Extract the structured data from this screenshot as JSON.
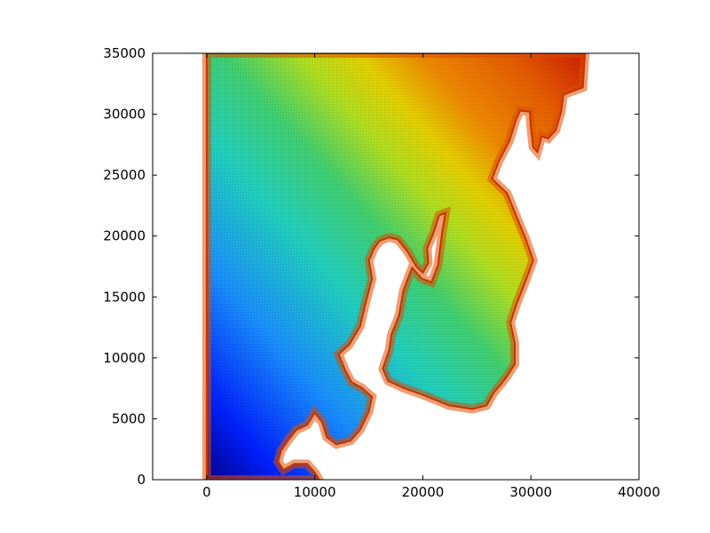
{
  "chart_data": {
    "type": "heatmap",
    "title": "",
    "xlabel": "",
    "ylabel": "",
    "xlim": [
      -5000,
      40000
    ],
    "ylim": [
      0,
      35000
    ],
    "x_ticks": [
      0,
      10000,
      20000,
      30000,
      40000
    ],
    "x_tick_labels": [
      "0",
      "10000",
      "20000",
      "30000",
      "40000"
    ],
    "y_ticks": [
      0,
      5000,
      10000,
      15000,
      20000,
      25000,
      30000,
      35000
    ],
    "y_tick_labels": [
      "0",
      "5000",
      "10000",
      "15000",
      "20000",
      "25000",
      "30000",
      "35000"
    ],
    "grid": false,
    "colormap": "jet",
    "mesh_overlay": "black triangulation edges",
    "domain_outline": [
      [
        0,
        0
      ],
      [
        0,
        35000
      ],
      [
        35000,
        35000
      ],
      [
        34800,
        32200
      ],
      [
        33000,
        31600
      ],
      [
        32800,
        30200
      ],
      [
        32300,
        28700
      ],
      [
        31600,
        28000
      ],
      [
        31000,
        28200
      ],
      [
        30600,
        26900
      ],
      [
        30200,
        27300
      ],
      [
        30000,
        28900
      ],
      [
        29900,
        30200
      ],
      [
        29000,
        30300
      ],
      [
        28600,
        29500
      ],
      [
        28000,
        27800
      ],
      [
        27000,
        26100
      ],
      [
        26400,
        24700
      ],
      [
        27800,
        23500
      ],
      [
        28800,
        21300
      ],
      [
        29500,
        19800
      ],
      [
        30200,
        18000
      ],
      [
        29500,
        16300
      ],
      [
        28700,
        14500
      ],
      [
        28100,
        12900
      ],
      [
        28500,
        11200
      ],
      [
        28500,
        9500
      ],
      [
        27800,
        8500
      ],
      [
        27200,
        7800
      ],
      [
        26600,
        7200
      ],
      [
        25900,
        6100
      ],
      [
        24600,
        5800
      ],
      [
        22400,
        6100
      ],
      [
        20200,
        6900
      ],
      [
        18300,
        7500
      ],
      [
        16800,
        8100
      ],
      [
        16300,
        9100
      ],
      [
        16900,
        10700
      ],
      [
        17100,
        11900
      ],
      [
        17800,
        13500
      ],
      [
        18200,
        15500
      ],
      [
        19000,
        17400
      ],
      [
        19900,
        16500
      ],
      [
        20800,
        16200
      ],
      [
        21400,
        17600
      ],
      [
        21800,
        20400
      ],
      [
        22100,
        21900
      ],
      [
        21500,
        21700
      ],
      [
        21000,
        20300
      ],
      [
        20400,
        19000
      ],
      [
        20500,
        17800
      ],
      [
        20000,
        17000
      ],
      [
        19400,
        17500
      ],
      [
        18600,
        18700
      ],
      [
        17700,
        19700
      ],
      [
        16900,
        19900
      ],
      [
        16000,
        19600
      ],
      [
        15500,
        19000
      ],
      [
        15000,
        18000
      ],
      [
        15300,
        16500
      ],
      [
        14700,
        14500
      ],
      [
        14200,
        12600
      ],
      [
        13200,
        11100
      ],
      [
        12200,
        10300
      ],
      [
        12800,
        9000
      ],
      [
        13400,
        8000
      ],
      [
        14400,
        7500
      ],
      [
        15300,
        6800
      ],
      [
        15000,
        5600
      ],
      [
        14200,
        4100
      ],
      [
        13300,
        3200
      ],
      [
        12000,
        2900
      ],
      [
        11100,
        3500
      ],
      [
        10700,
        4700
      ],
      [
        10000,
        5500
      ],
      [
        9300,
        4500
      ],
      [
        8300,
        4100
      ],
      [
        7500,
        3200
      ],
      [
        6900,
        2400
      ],
      [
        6600,
        1500
      ],
      [
        7100,
        800
      ],
      [
        8100,
        1300
      ],
      [
        9300,
        1300
      ],
      [
        10000,
        600
      ],
      [
        10400,
        0
      ]
    ],
    "value_range_hint": "low (blue) at bottom-left, high (red) at coastline/right side"
  }
}
